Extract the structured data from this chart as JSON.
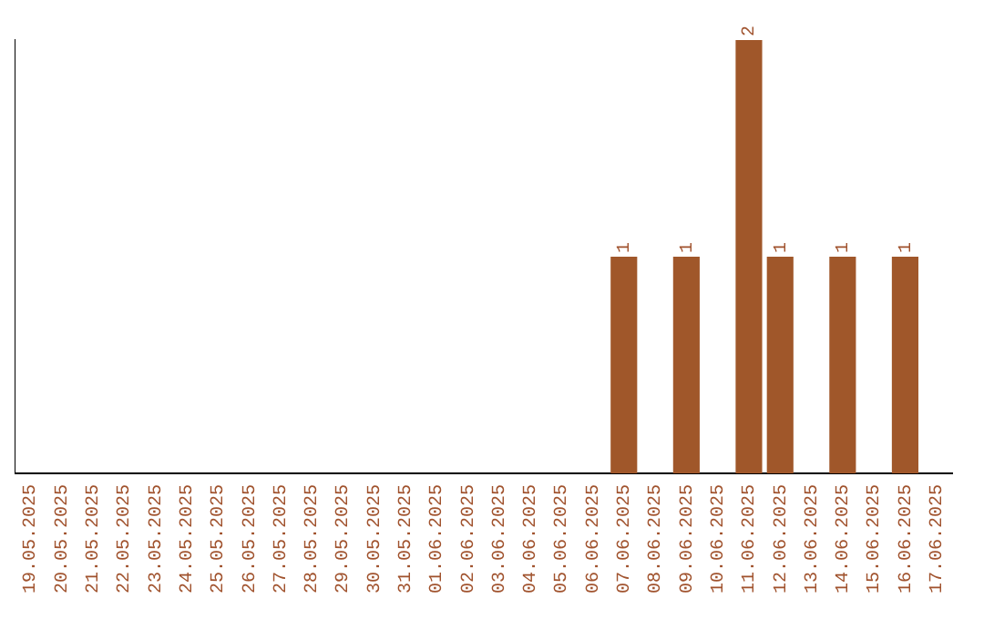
{
  "chart_data": {
    "type": "bar",
    "categories": [
      "19.05.2025",
      "20.05.2025",
      "21.05.2025",
      "22.05.2025",
      "23.05.2025",
      "24.05.2025",
      "25.05.2025",
      "26.05.2025",
      "27.05.2025",
      "28.05.2025",
      "29.05.2025",
      "30.05.2025",
      "31.05.2025",
      "01.06.2025",
      "02.06.2025",
      "03.06.2025",
      "04.06.2025",
      "05.06.2025",
      "06.06.2025",
      "07.06.2025",
      "08.06.2025",
      "09.06.2025",
      "10.06.2025",
      "11.06.2025",
      "12.06.2025",
      "13.06.2025",
      "14.06.2025",
      "15.06.2025",
      "16.06.2025",
      "17.06.2025"
    ],
    "values": [
      null,
      null,
      null,
      null,
      null,
      null,
      null,
      null,
      null,
      null,
      null,
      null,
      null,
      null,
      null,
      null,
      null,
      null,
      null,
      1,
      null,
      1,
      null,
      2,
      1,
      null,
      1,
      null,
      1,
      null
    ],
    "data_labels": true,
    "color": "#a0572a",
    "grid": false,
    "legend": false,
    "tick_labels": "x"
  }
}
